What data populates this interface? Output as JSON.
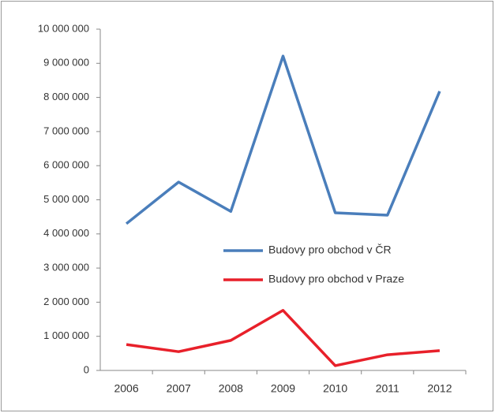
{
  "chart_data": {
    "type": "line",
    "categories": [
      "2006",
      "2007",
      "2008",
      "2009",
      "2010",
      "2011",
      "2012"
    ],
    "series": [
      {
        "name": "Budovy pro obchod v ČR",
        "color": "#4a7ebb",
        "values": [
          4300000,
          5520000,
          4660000,
          9210000,
          4620000,
          4550000,
          8180000
        ]
      },
      {
        "name": "Budovy pro obchod v Praze",
        "color": "#e8202a",
        "values": [
          760000,
          550000,
          880000,
          1760000,
          140000,
          460000,
          580000
        ]
      }
    ],
    "ylim": [
      0,
      10000000
    ],
    "yticks": [
      0,
      {
        "value": 1000000,
        "label": "1 000 000"
      },
      {
        "value": 2000000,
        "label": "2 000 000"
      },
      {
        "value": 3000000,
        "label": "3 000 000"
      },
      {
        "value": 4000000,
        "label": "4 000 000"
      },
      {
        "value": 5000000,
        "label": "5 000 000"
      },
      {
        "value": 6000000,
        "label": "6 000 000"
      },
      {
        "value": 7000000,
        "label": "7 000 000"
      },
      {
        "value": 8000000,
        "label": "8 000 000"
      },
      {
        "value": 9000000,
        "label": "9 000 000"
      },
      {
        "value": 10000000,
        "label": "10 000 000"
      }
    ],
    "grid": false,
    "legend": "right"
  }
}
